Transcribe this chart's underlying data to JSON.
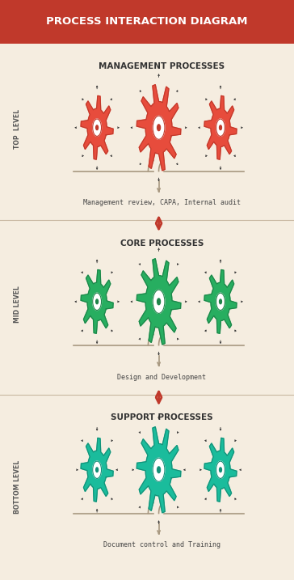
{
  "title": "PROCESS INTERACTION DIAGRAM",
  "title_bg": "#c0392b",
  "title_color": "#ffffff",
  "bg_color": "#f5ede0",
  "divider_color": "#c8b8a2",
  "sections": [
    {
      "level_label": "TOP  LEVEL",
      "heading": "MANAGEMENT PROCESSES",
      "gear_color": "#e74c3c",
      "gear_outline": "#c0392b",
      "gear_center": "#ffffff",
      "num_gears": 3,
      "caption": "Management review, CAPA, Internal audit",
      "arrows_down": true,
      "arrows_up": false
    },
    {
      "level_label": "MID LEVEL",
      "heading": "CORE PROCESSES",
      "gear_color": "#27ae60",
      "gear_outline": "#1e8449",
      "gear_center": "#ffffff",
      "num_gears": 3,
      "caption": "Design and Development",
      "arrows_down": true,
      "arrows_up": true
    },
    {
      "level_label": "BOTTOM LEVEL",
      "heading": "SUPPORT PROCESSES",
      "gear_color": "#1abc9c",
      "gear_outline": "#148f77",
      "gear_center": "#ffffff",
      "num_gears": 3,
      "caption": "Document control and Training",
      "arrows_down": false,
      "arrows_up": true
    }
  ],
  "double_arrow_color": "#c0392b",
  "brace_color": "#a89880"
}
